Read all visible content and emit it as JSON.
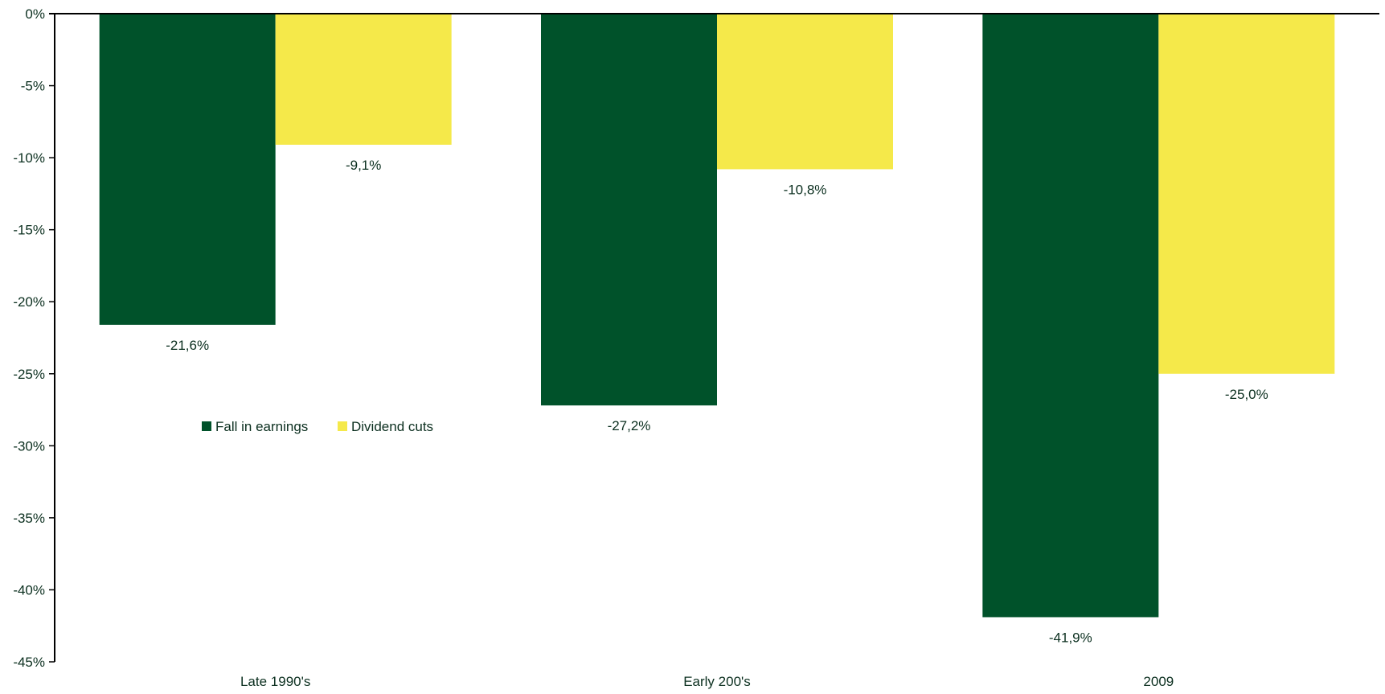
{
  "chart_data": {
    "type": "bar",
    "categories": [
      "Late 1990's",
      "Early 200's",
      "2009"
    ],
    "series": [
      {
        "name": "Fall in earnings",
        "color": "#00522a",
        "values": [
          -21.6,
          -27.2,
          -41.9
        ],
        "labels": [
          "-21,6%",
          "-27,2%",
          "-41,9%"
        ]
      },
      {
        "name": "Dividend cuts",
        "color": "#f5e94a",
        "values": [
          -9.1,
          -10.8,
          -25.0
        ],
        "labels": [
          "-9,1%",
          "-10,8%",
          "-25,0%"
        ]
      }
    ],
    "ylim": [
      -45,
      0
    ],
    "yticks": [
      0,
      -5,
      -10,
      -15,
      -20,
      -25,
      -30,
      -35,
      -40,
      -45
    ],
    "ytick_labels": [
      "0%",
      "-5%",
      "-10%",
      "-15%",
      "-20%",
      "-25%",
      "-30%",
      "-35%",
      "-40%",
      "-45%"
    ],
    "title": "",
    "xlabel": "",
    "ylabel": "",
    "grid": false,
    "legend_position": "upper-left inside plot"
  }
}
